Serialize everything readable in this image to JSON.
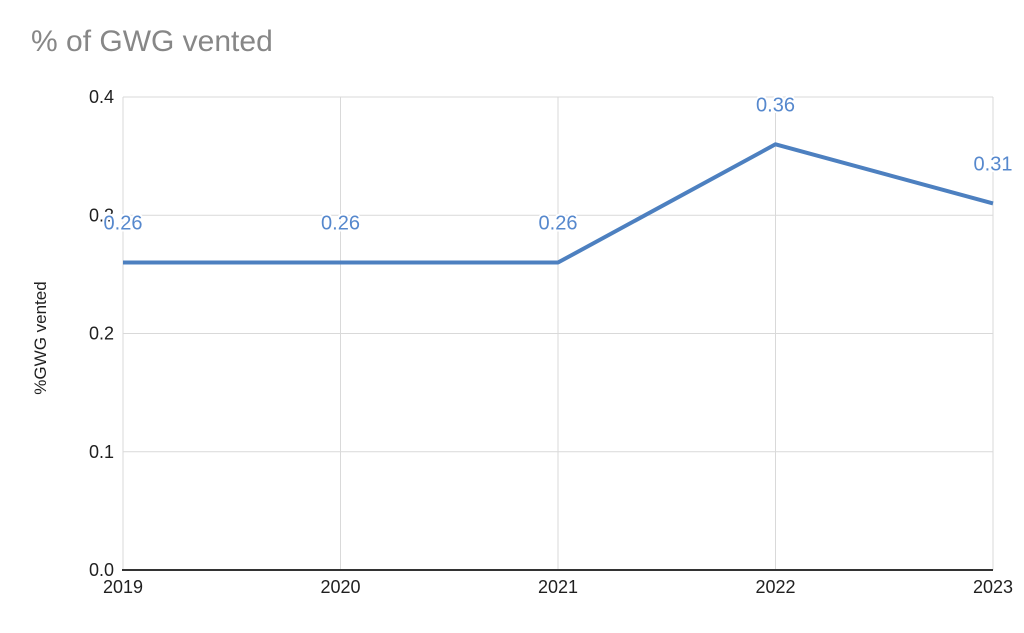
{
  "title": "% of GWG vented",
  "chart_data": {
    "type": "line",
    "title": "% of GWG vented",
    "xlabel": "",
    "ylabel": "%GWG vented",
    "categories": [
      "2019",
      "2020",
      "2021",
      "2022",
      "2023"
    ],
    "values": [
      0.26,
      0.26,
      0.26,
      0.36,
      0.31
    ],
    "point_labels": [
      "0.26",
      "0.26",
      "0.26",
      "0.36",
      "0.31"
    ],
    "ylim": [
      0,
      0.4
    ],
    "yticks": [
      0,
      0.1,
      0.2,
      0.3,
      0.4
    ],
    "ytick_labels": [
      "0.0",
      "0.1",
      "0.2",
      "0.3",
      "0.4"
    ],
    "grid": true,
    "legend": "none",
    "colors": {
      "line": "#4d80c0",
      "point_label": "#5688cd",
      "gridline": "#d9d9d9",
      "axis_line": "#333333",
      "tick_label": "#1f1f1f",
      "title": "#878787"
    }
  }
}
